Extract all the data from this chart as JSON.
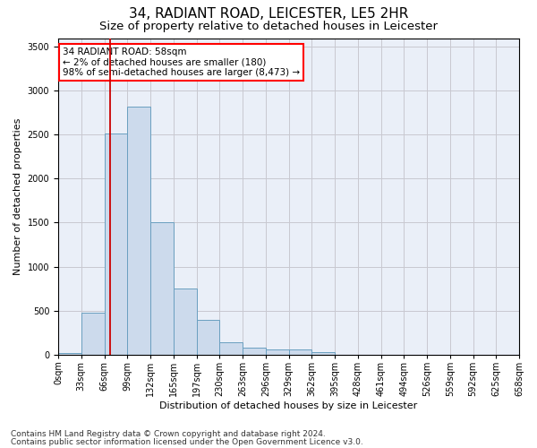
{
  "title": "34, RADIANT ROAD, LEICESTER, LE5 2HR",
  "subtitle": "Size of property relative to detached houses in Leicester",
  "xlabel": "Distribution of detached houses by size in Leicester",
  "ylabel": "Number of detached properties",
  "footnote1": "Contains HM Land Registry data © Crown copyright and database right 2024.",
  "footnote2": "Contains public sector information licensed under the Open Government Licence v3.0.",
  "annotation_line1": "34 RADIANT ROAD: 58sqm",
  "annotation_line2": "← 2% of detached houses are smaller (180)",
  "annotation_line3": "98% of semi-detached houses are larger (8,473) →",
  "bar_values": [
    20,
    480,
    2510,
    2820,
    1510,
    750,
    390,
    140,
    75,
    60,
    55,
    30,
    0,
    0,
    0,
    0,
    0,
    0,
    0,
    0
  ],
  "bar_color": "#ccdaec",
  "bar_edge_color": "#6a9fc0",
  "bin_labels": [
    "0sqm",
    "33sqm",
    "66sqm",
    "99sqm",
    "132sqm",
    "165sqm",
    "197sqm",
    "230sqm",
    "263sqm",
    "296sqm",
    "329sqm",
    "362sqm",
    "395sqm",
    "428sqm",
    "461sqm",
    "494sqm",
    "526sqm",
    "559sqm",
    "592sqm",
    "625sqm",
    "658sqm"
  ],
  "n_bars": 20,
  "vline_x": 1.758,
  "vline_color": "#cc0000",
  "ylim": [
    0,
    3600
  ],
  "yticks": [
    0,
    500,
    1000,
    1500,
    2000,
    2500,
    3000,
    3500
  ],
  "grid_color": "#c8c8d0",
  "bg_color": "#eaeff8",
  "title_fontsize": 11,
  "subtitle_fontsize": 9.5,
  "axis_label_fontsize": 8,
  "tick_fontsize": 7,
  "footnote_fontsize": 6.5,
  "annot_fontsize": 7.5
}
